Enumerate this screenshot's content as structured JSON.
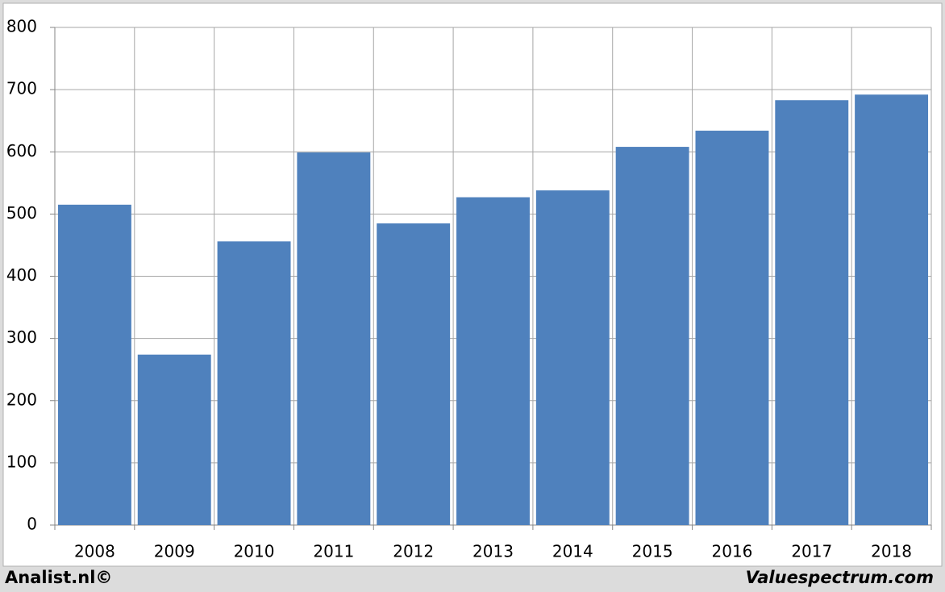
{
  "chart_data": {
    "type": "bar",
    "categories": [
      "2008",
      "2009",
      "2010",
      "2011",
      "2012",
      "2013",
      "2014",
      "2015",
      "2016",
      "2017",
      "2018"
    ],
    "values": [
      515,
      274,
      456,
      599,
      485,
      527,
      538,
      608,
      634,
      683,
      692
    ],
    "color": "#4f81bd",
    "ylim": [
      0,
      800
    ],
    "yticks": [
      0,
      100,
      200,
      300,
      400,
      500,
      600,
      700,
      800
    ],
    "grid": true
  },
  "footer": {
    "left": "Analist.nl©",
    "right": "Valuespectrum.com"
  }
}
